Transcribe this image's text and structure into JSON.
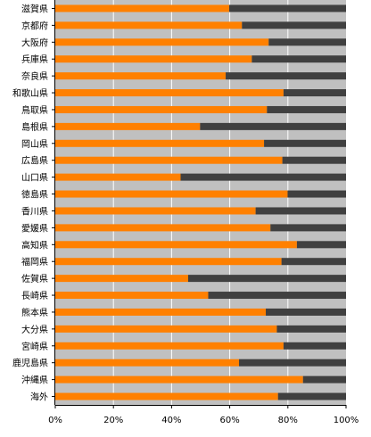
{
  "colors": {
    "plot_bg": "#c0c0c0",
    "primary_bar": "#ff8000",
    "secondary_bar": "#404040",
    "grid": "#ffffff",
    "axis": "#000000"
  },
  "chart_data": {
    "type": "bar",
    "orientation": "horizontal",
    "stacked": true,
    "percent_stacked": true,
    "categories": [
      "滋賀県",
      "京都府",
      "大阪府",
      "兵庫県",
      "奈良県",
      "和歌山県",
      "鳥取県",
      "島根県",
      "岡山県",
      "広島県",
      "山口県",
      "徳島県",
      "香川県",
      "愛媛県",
      "高知県",
      "福岡県",
      "佐賀県",
      "長崎県",
      "熊本県",
      "大分県",
      "宮崎県",
      "鹿児島県",
      "沖縄県",
      "海外"
    ],
    "series": [
      {
        "color": "#ff8000",
        "values": [
          59.8,
          64.2,
          73.4,
          67.6,
          58.6,
          78.5,
          72.8,
          49.8,
          71.8,
          78.1,
          43.1,
          79.9,
          68.9,
          74.0,
          83.1,
          77.8,
          45.7,
          52.6,
          72.4,
          76.2,
          78.5,
          63.2,
          85.2,
          76.6
        ]
      },
      {
        "color": "#404040",
        "values": [
          40.2,
          35.8,
          26.6,
          32.4,
          41.4,
          21.5,
          27.2,
          50.2,
          28.2,
          21.9,
          56.9,
          20.1,
          31.1,
          26.0,
          16.9,
          22.2,
          54.3,
          47.4,
          27.6,
          23.8,
          21.5,
          36.8,
          14.8,
          23.4
        ]
      }
    ],
    "x_ticks": [
      "0%",
      "20%",
      "40%",
      "60%",
      "80%",
      "100%"
    ],
    "xlim": [
      0,
      100
    ],
    "grid": true,
    "legend": "none"
  }
}
